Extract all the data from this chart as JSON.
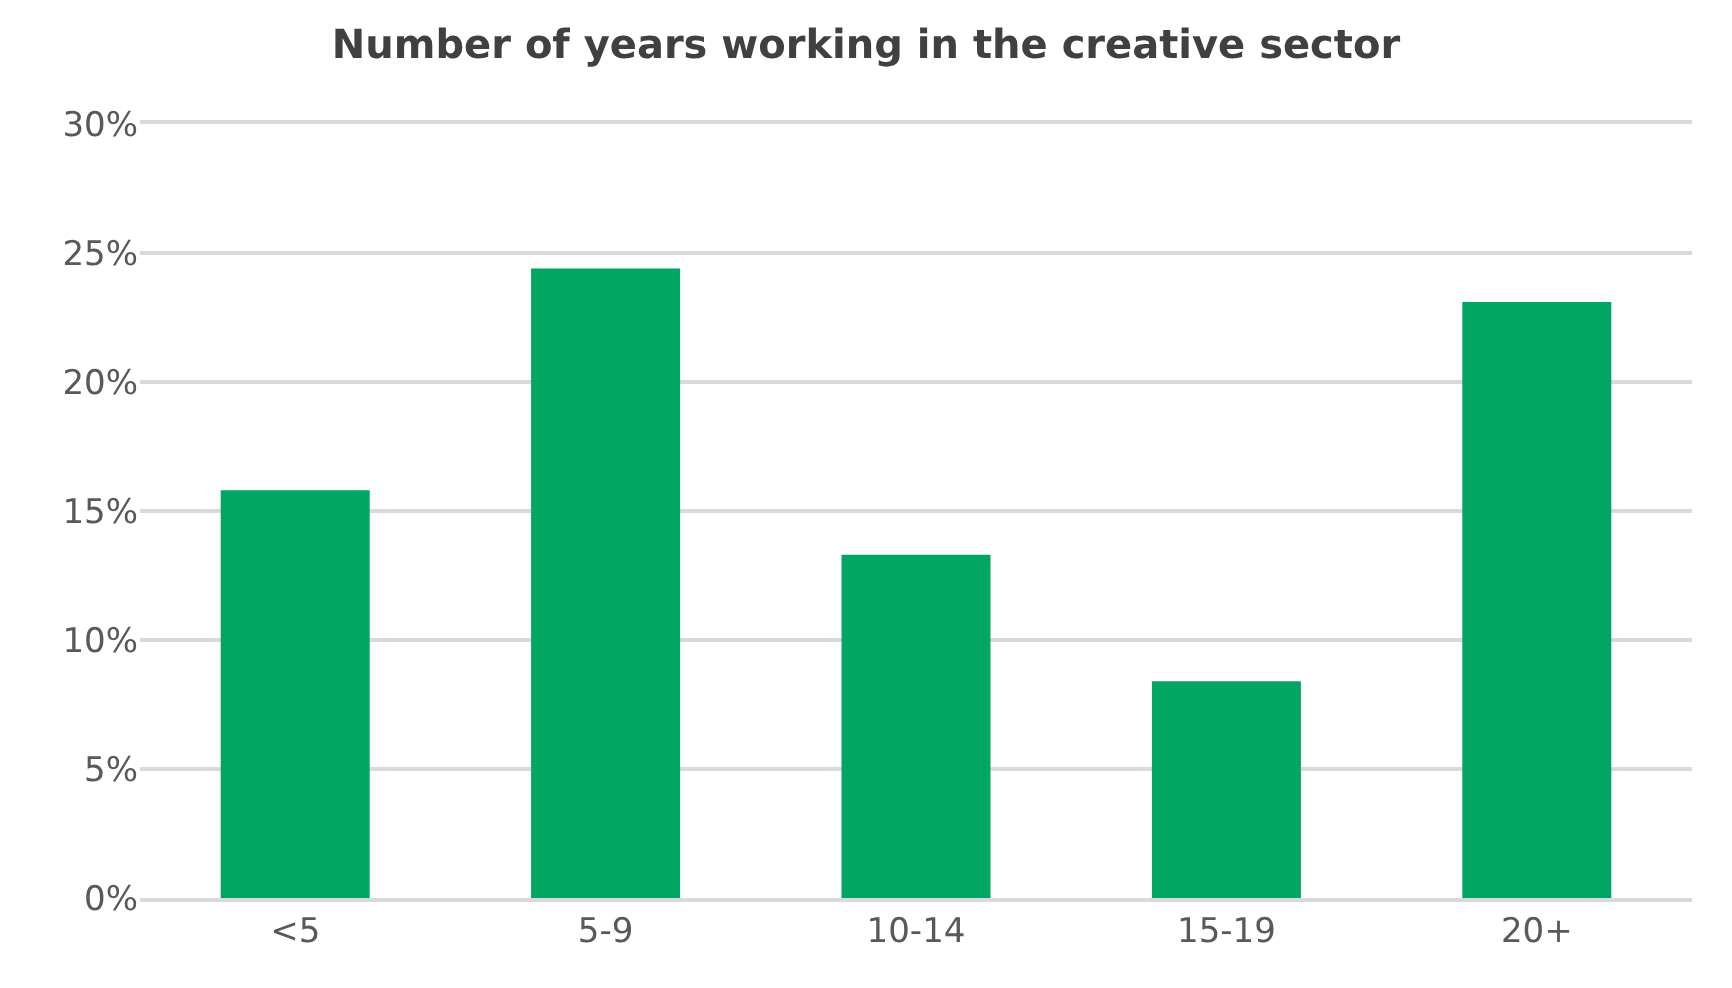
{
  "chart_data": {
    "type": "bar",
    "title": "Number of years working in the creative sector",
    "categories": [
      "<5",
      "5-9",
      "10-14",
      "15-19",
      "20+"
    ],
    "values": [
      15.8,
      24.4,
      13.3,
      8.4,
      23.1
    ],
    "color": "#00a661",
    "ylim": [
      0,
      30
    ],
    "yticks": [
      {
        "value": 0,
        "label": "0%"
      },
      {
        "value": 5,
        "label": "5%"
      },
      {
        "value": 10,
        "label": "10%"
      },
      {
        "value": 15,
        "label": "15%"
      },
      {
        "value": 20,
        "label": "20%"
      },
      {
        "value": 25,
        "label": "25%"
      },
      {
        "value": 30,
        "label": "30%"
      }
    ],
    "grid": "y"
  }
}
